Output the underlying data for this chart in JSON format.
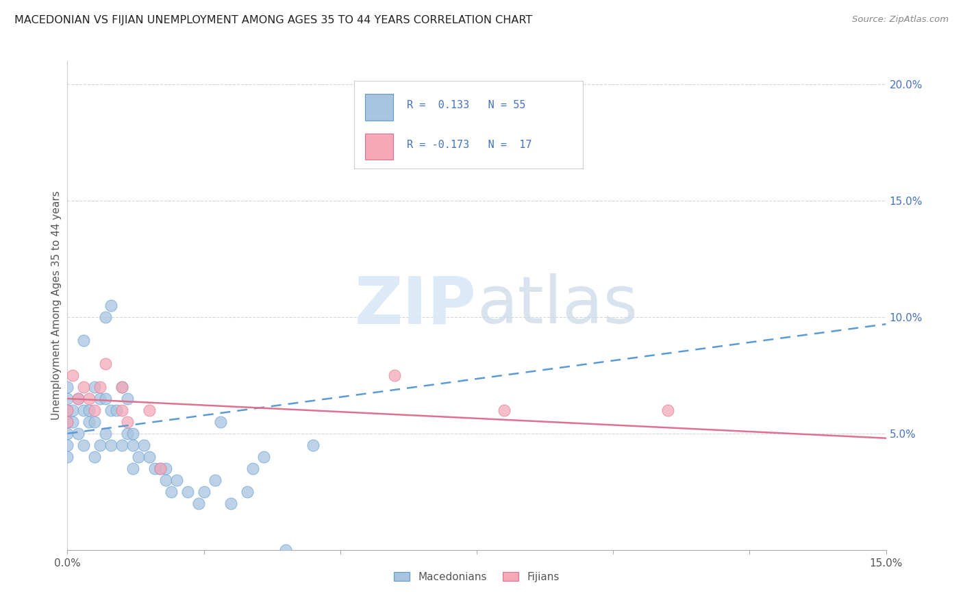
{
  "title": "MACEDONIAN VS FIJIAN UNEMPLOYMENT AMONG AGES 35 TO 44 YEARS CORRELATION CHART",
  "source": "Source: ZipAtlas.com",
  "ylabel": "Unemployment Among Ages 35 to 44 years",
  "xlim": [
    0.0,
    0.15
  ],
  "ylim": [
    0.0,
    0.21
  ],
  "xticks": [
    0.0,
    0.025,
    0.05,
    0.075,
    0.1,
    0.125,
    0.15
  ],
  "yticks": [
    0.0,
    0.05,
    0.1,
    0.15,
    0.2
  ],
  "macedonian_color": "#a8c4e0",
  "fijian_color": "#f4a8b8",
  "trend_mac_color": "#5b9bd5",
  "trend_fij_color": "#e07090",
  "macedonian_x": [
    0.0,
    0.0,
    0.0,
    0.0,
    0.0,
    0.0,
    0.0,
    0.001,
    0.001,
    0.002,
    0.002,
    0.003,
    0.003,
    0.003,
    0.004,
    0.004,
    0.005,
    0.005,
    0.005,
    0.006,
    0.006,
    0.007,
    0.007,
    0.007,
    0.008,
    0.008,
    0.008,
    0.009,
    0.01,
    0.01,
    0.011,
    0.011,
    0.012,
    0.012,
    0.013,
    0.014,
    0.015,
    0.016,
    0.017,
    0.018,
    0.019,
    0.02,
    0.022,
    0.024,
    0.025,
    0.027,
    0.028,
    0.03,
    0.033,
    0.034,
    0.036,
    0.04,
    0.045,
    0.012,
    0.018
  ],
  "macedonian_y": [
    0.04,
    0.045,
    0.05,
    0.055,
    0.06,
    0.065,
    0.07,
    0.055,
    0.06,
    0.05,
    0.065,
    0.045,
    0.06,
    0.09,
    0.055,
    0.06,
    0.04,
    0.055,
    0.07,
    0.045,
    0.065,
    0.05,
    0.065,
    0.1,
    0.045,
    0.06,
    0.105,
    0.06,
    0.045,
    0.07,
    0.05,
    0.065,
    0.035,
    0.05,
    0.04,
    0.045,
    0.04,
    0.035,
    0.035,
    0.03,
    0.025,
    0.03,
    0.025,
    0.02,
    0.025,
    0.03,
    0.055,
    0.02,
    0.025,
    0.035,
    0.04,
    0.0,
    0.045,
    0.045,
    0.035
  ],
  "fijian_x": [
    0.0,
    0.0,
    0.001,
    0.002,
    0.003,
    0.004,
    0.005,
    0.006,
    0.007,
    0.01,
    0.01,
    0.011,
    0.015,
    0.017,
    0.06,
    0.08,
    0.11
  ],
  "fijian_y": [
    0.055,
    0.06,
    0.075,
    0.065,
    0.07,
    0.065,
    0.06,
    0.07,
    0.08,
    0.06,
    0.07,
    0.055,
    0.06,
    0.035,
    0.075,
    0.06,
    0.06
  ],
  "mac_trend_x": [
    0.0,
    0.15
  ],
  "mac_trend_y": [
    0.05,
    0.097
  ],
  "fij_trend_x": [
    0.0,
    0.15
  ],
  "fij_trend_y": [
    0.065,
    0.048
  ],
  "legend_text_mac": "R =  0.133   N = 55",
  "legend_text_fij": "R = -0.173   N =  17",
  "watermark_zip": "ZIP",
  "watermark_atlas": "atlas"
}
